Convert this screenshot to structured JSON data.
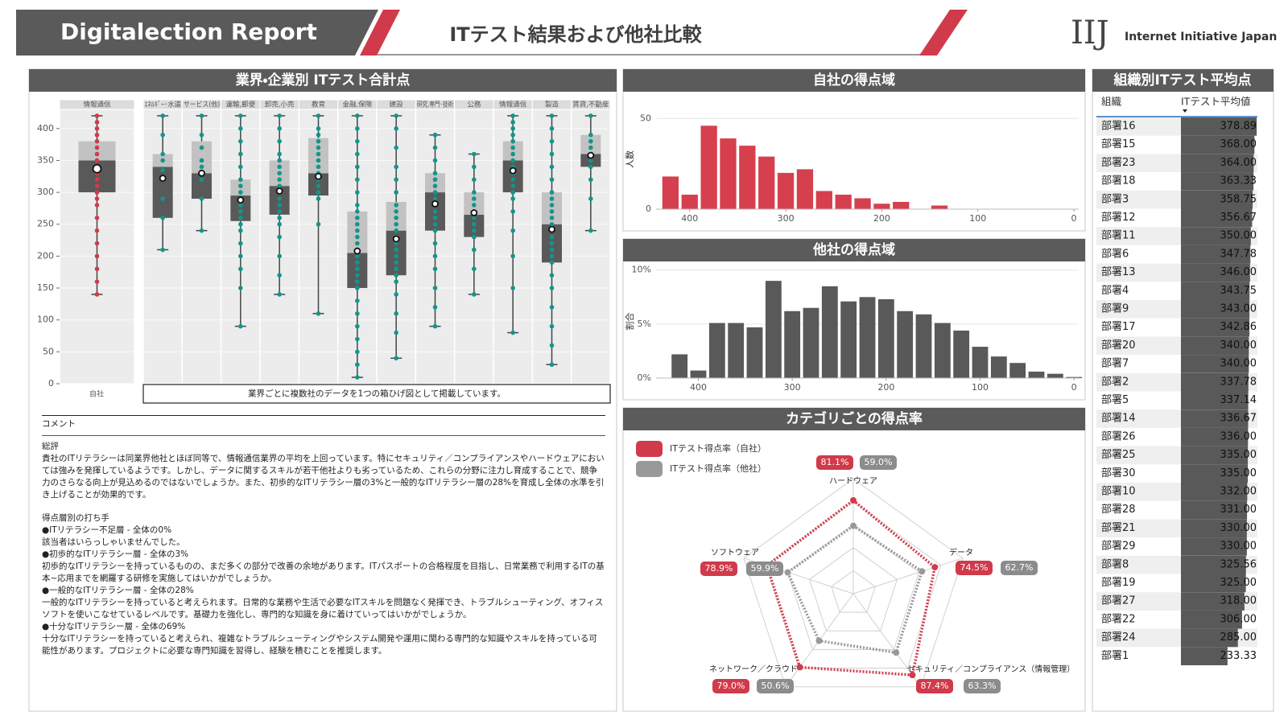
{
  "header": {
    "title": "Digitalection Report",
    "subtitle": "ITテスト結果および他社比較",
    "logo": "IIJ",
    "company": "Internet Initiative Japan"
  },
  "chart_data": [
    {
      "type": "box",
      "title": "業界・企業別 ITテスト合計点",
      "categories": [
        "情報通信",
        "ｴﾈﾙｷﾞｰ･水道",
        "サービス(他)",
        "運輸,郵便",
        "卸売,小売",
        "教育",
        "金融,保険",
        "建設",
        "研究,専門･技術",
        "公務",
        "情報通信",
        "製造",
        "賃貸,不動産"
      ],
      "self_label": "自社",
      "note": "業界ごとに複数社のデータを1つの箱ひげ図として掲載しています。",
      "ylim": [
        0,
        430
      ],
      "yticks": [
        0,
        50,
        100,
        150,
        200,
        250,
        300,
        350,
        400
      ],
      "colors": {
        "self": "#d13a4a",
        "others": "#12968a",
        "lower": "#595959",
        "upper": "#c2c2c2"
      },
      "boxes": [
        {
          "min": 140,
          "q1": 300,
          "median": 350,
          "q3": 380,
          "max": 420,
          "mean": 337,
          "points": [
            140,
            160,
            180,
            200,
            220,
            240,
            260,
            280,
            290,
            300,
            310,
            320,
            330,
            340,
            350,
            360,
            370,
            380,
            390,
            400,
            410,
            420
          ]
        },
        {
          "min": 210,
          "q1": 260,
          "median": 340,
          "q3": 360,
          "max": 420,
          "mean": 322,
          "points": [
            210,
            260,
            290,
            320,
            335,
            350,
            360,
            390,
            420
          ]
        },
        {
          "min": 240,
          "q1": 290,
          "median": 330,
          "q3": 380,
          "max": 420,
          "mean": 330,
          "points": [
            240,
            290,
            320,
            340,
            350,
            370,
            390,
            420
          ]
        },
        {
          "min": 90,
          "q1": 255,
          "median": 295,
          "q3": 320,
          "max": 420,
          "mean": 288,
          "points": [
            90,
            150,
            180,
            200,
            220,
            240,
            250,
            260,
            270,
            280,
            290,
            300,
            310,
            320,
            340,
            360,
            380,
            400,
            420
          ]
        },
        {
          "min": 140,
          "q1": 265,
          "median": 310,
          "q3": 350,
          "max": 420,
          "mean": 302,
          "points": [
            140,
            170,
            200,
            230,
            250,
            260,
            270,
            280,
            290,
            300,
            310,
            320,
            330,
            340,
            350,
            360,
            380,
            400,
            420
          ]
        },
        {
          "min": 110,
          "q1": 295,
          "median": 330,
          "q3": 385,
          "max": 420,
          "mean": 325,
          "points": [
            110,
            250,
            290,
            300,
            310,
            320,
            330,
            340,
            350,
            360,
            370,
            380,
            390,
            400,
            420
          ]
        },
        {
          "min": 10,
          "q1": 150,
          "median": 205,
          "q3": 270,
          "max": 420,
          "mean": 208,
          "points": [
            10,
            30,
            50,
            70,
            90,
            110,
            130,
            150,
            160,
            170,
            180,
            190,
            200,
            210,
            220,
            230,
            240,
            250,
            260,
            270,
            280,
            300,
            320,
            340,
            360,
            380,
            400,
            420
          ]
        },
        {
          "min": 40,
          "q1": 170,
          "median": 240,
          "q3": 285,
          "max": 420,
          "mean": 227,
          "points": [
            40,
            80,
            110,
            140,
            160,
            170,
            180,
            190,
            200,
            210,
            220,
            230,
            240,
            250,
            260,
            270,
            280,
            300,
            320,
            340,
            370,
            400,
            420
          ]
        },
        {
          "min": 90,
          "q1": 240,
          "median": 300,
          "q3": 330,
          "max": 390,
          "mean": 282,
          "points": [
            90,
            120,
            150,
            180,
            200,
            220,
            240,
            250,
            260,
            270,
            280,
            290,
            300,
            310,
            320,
            330,
            350,
            370,
            390
          ]
        },
        {
          "min": 140,
          "q1": 230,
          "median": 265,
          "q3": 300,
          "max": 360,
          "mean": 268,
          "points": [
            140,
            180,
            210,
            230,
            240,
            250,
            260,
            270,
            280,
            290,
            300,
            320,
            340,
            360
          ]
        },
        {
          "min": 80,
          "q1": 300,
          "median": 350,
          "q3": 380,
          "max": 420,
          "mean": 334,
          "points": [
            80,
            150,
            200,
            240,
            270,
            290,
            300,
            310,
            320,
            330,
            340,
            350,
            360,
            370,
            380,
            390,
            400,
            410,
            420
          ]
        },
        {
          "min": 30,
          "q1": 190,
          "median": 250,
          "q3": 300,
          "max": 420,
          "mean": 242,
          "points": [
            30,
            60,
            90,
            120,
            150,
            170,
            190,
            200,
            210,
            220,
            230,
            240,
            250,
            260,
            270,
            280,
            290,
            300,
            320,
            340,
            360,
            380,
            400,
            420
          ]
        },
        {
          "min": 240,
          "q1": 340,
          "median": 360,
          "q3": 390,
          "max": 420,
          "mean": 358,
          "points": [
            240,
            290,
            320,
            340,
            350,
            360,
            370,
            380,
            390,
            420
          ]
        }
      ]
    },
    {
      "type": "bar",
      "title": "自社の得点域",
      "ylabel": "人数",
      "x": [
        420,
        400,
        380,
        360,
        340,
        320,
        300,
        280,
        260,
        240,
        220,
        200,
        180,
        160,
        140
      ],
      "values": [
        18,
        8,
        46,
        39,
        35,
        29,
        20,
        22,
        10,
        8,
        6,
        3,
        4,
        0,
        2
      ],
      "color": "#d6404e",
      "xlim": [
        435,
        -5
      ],
      "xticks": [
        400,
        300,
        200,
        100,
        0
      ],
      "ylim": [
        0,
        55
      ],
      "yticks": [
        0,
        50
      ]
    },
    {
      "type": "bar",
      "title": "他社の得点域",
      "ylabel": "割合",
      "x": [
        420,
        400,
        380,
        360,
        340,
        320,
        300,
        280,
        260,
        240,
        220,
        200,
        180,
        160,
        140,
        120,
        100,
        80,
        60,
        40,
        20,
        0
      ],
      "values": [
        2.2,
        0.7,
        5.1,
        5.1,
        4.7,
        9.0,
        6.2,
        6.5,
        8.5,
        7.1,
        7.5,
        7.3,
        6.2,
        5.9,
        5.1,
        4.4,
        2.9,
        2.0,
        1.4,
        0.6,
        0.4,
        0.1
      ],
      "color": "#595959",
      "xlim": [
        445,
        -5
      ],
      "xticks": [
        400,
        300,
        200,
        100,
        0
      ],
      "ylim": [
        0,
        10.5
      ],
      "yticks": [
        {
          "value": 0,
          "label": "0%"
        },
        {
          "value": 5,
          "label": "5%"
        },
        {
          "value": 10,
          "label": "10%"
        }
      ]
    },
    {
      "type": "radar",
      "title": "カテゴリごとの得点率",
      "categories": [
        "ハードウェア",
        "データ",
        "セキュリティ／コンプライアンス（情報管理）",
        "ネットワーク／クラウド",
        "ソフトウェア"
      ],
      "rlim": [
        0,
        100
      ],
      "series": [
        {
          "name": "ITテスト得点率（自社）",
          "color": "#d13a4a",
          "values": [
            81.1,
            74.5,
            87.4,
            79.0,
            78.9
          ],
          "value_labels": [
            "81.1%",
            "74.5%",
            "87.4%",
            "79.0%",
            "78.9%"
          ]
        },
        {
          "name": "ITテスト得点率（他社）",
          "color": "#999999",
          "values": [
            59.0,
            62.7,
            63.3,
            50.6,
            59.9
          ],
          "value_labels": [
            "59.0%",
            "62.7%",
            "63.3%",
            "50.6%",
            "59.9%"
          ]
        }
      ]
    }
  ],
  "comment": {
    "label": "コメント",
    "sections": [
      {
        "title": "総評",
        "paragraphs": [
          "貴社のITリテラシーは同業界他社とほぼ同等で、情報通信業界の平均を上回っています。特にセキュリティ／コンプライアンスやハードウェアにおいては強みを発揮しているようです。しかし、データに関するスキルが若干他社よりも劣っているため、これらの分野に注力し育成することで、競争力のさらなる向上が見込めるのではないでしょうか。また、初歩的なITリテラシー層の3%と一般的なITリテラシー層の28%を育成し全体の水準を引き上げることが効果的です。"
        ]
      },
      {
        "title": "得点層別の打ち手",
        "paragraphs": [
          "●ITリテラシー不足層 - 全体の0%",
          "該当者はいらっしゃいませんでした。",
          "●初歩的なITリテラシー層 - 全体の3%",
          "初歩的なITリテラシーを持っているものの、まだ多くの部分で改善の余地があります。ITパスポートの合格程度を目指し、日常業務で利用するITの基本~応用までを網羅する研修を実施してはいかがでしょうか。",
          "●一般的なITリテラシー層 - 全体の28%",
          "一般的なITリテラシーを持っていると考えられます。日常的な業務や生活で必要なITスキルを問題なく発揮でき、トラブルシューティング、オフィスソフトを使いこなせているレベルです。基礎力を強化し、専門的な知識を身に着けていってはいかがでしょうか。",
          "●十分なITリテラシー層 - 全体の69%",
          "十分なITリテラシーを持っていると考えられ、複雑なトラブルシューティングやシステム開発や運用に関わる専門的な知識やスキルを持っている可能性があります。プロジェクトに必要な専門知識を習得し、経験を積むことを推奨します。"
        ]
      }
    ]
  },
  "table": {
    "title": "組織別ITテスト平均点",
    "columns": [
      "組織",
      "ITテスト平均値"
    ],
    "color": "#595959",
    "names": [
      "部署16",
      "部署15",
      "部署23",
      "部署18",
      "部署3",
      "部署12",
      "部署11",
      "部署6",
      "部署13",
      "部署4",
      "部署9",
      "部署17",
      "部署20",
      "部署7",
      "部署2",
      "部署5",
      "部署14",
      "部署26",
      "部署25",
      "部署30",
      "部署10",
      "部署28",
      "部署21",
      "部署29",
      "部署8",
      "部署19",
      "部署27",
      "部署22",
      "部署24",
      "部署1"
    ],
    "values": [
      378.89,
      368,
      364,
      363.33,
      358.75,
      356.67,
      350,
      347.78,
      346,
      343.75,
      343,
      342.86,
      340,
      340,
      337.78,
      337.14,
      336.67,
      336,
      335,
      335,
      332,
      331,
      330,
      330,
      325.56,
      325,
      318,
      306,
      285,
      233.33
    ],
    "value_labels": [
      "378.89",
      "368.00",
      "364.00",
      "363.33",
      "358.75",
      "356.67",
      "350.00",
      "347.78",
      "346.00",
      "343.75",
      "343.00",
      "342.86",
      "340.00",
      "340.00",
      "337.78",
      "337.14",
      "336.67",
      "336.00",
      "335.00",
      "335.00",
      "332.00",
      "331.00",
      "330.00",
      "330.00",
      "325.56",
      "325.00",
      "318.00",
      "306.00",
      "285.00",
      "233.33"
    ]
  }
}
